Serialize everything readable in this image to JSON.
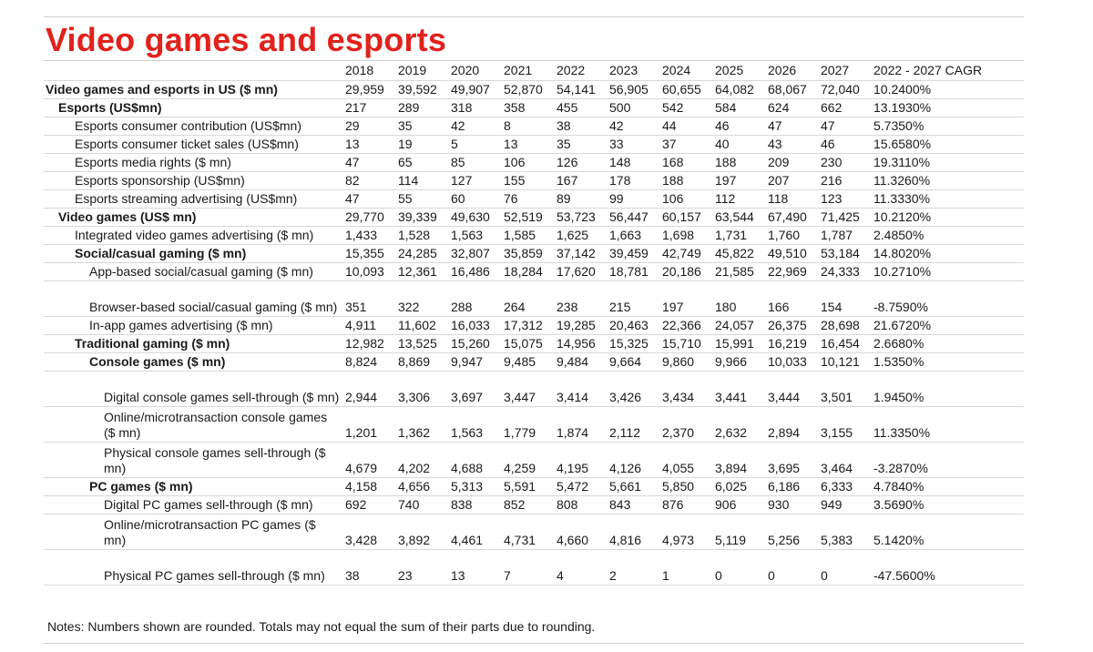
{
  "title": "Video games and esports",
  "header": [
    "",
    "2018",
    "2019",
    "2020",
    "2021",
    "2022",
    "2023",
    "2024",
    "2025",
    "2026",
    "2027",
    "2022 - 2027 CAGR"
  ],
  "rows": [
    {
      "label": "Video games and esports in US ($ mn)",
      "values": [
        "29,959",
        "39,592",
        "49,907",
        "52,870",
        "54,141",
        "56,905",
        "60,655",
        "64,082",
        "68,067",
        "72,040",
        "10.2400%"
      ]
    },
    {
      "label": "Esports (US$mn)",
      "values": [
        "217",
        "289",
        "318",
        "358",
        "455",
        "500",
        "542",
        "584",
        "624",
        "662",
        "13.1930%"
      ]
    },
    {
      "label": "Esports consumer contribution (US$mn)",
      "values": [
        "29",
        "35",
        "42",
        "8",
        "38",
        "42",
        "44",
        "46",
        "47",
        "47",
        "5.7350%"
      ]
    },
    {
      "label": "Esports consumer ticket sales (US$mn)",
      "values": [
        "13",
        "19",
        "5",
        "13",
        "35",
        "33",
        "37",
        "40",
        "43",
        "46",
        "15.6580%"
      ]
    },
    {
      "label": "Esports media rights ($ mn)",
      "values": [
        "47",
        "65",
        "85",
        "106",
        "126",
        "148",
        "168",
        "188",
        "209",
        "230",
        "19.3110%"
      ]
    },
    {
      "label": "Esports sponsorship (US$mn)",
      "values": [
        "82",
        "114",
        "127",
        "155",
        "167",
        "178",
        "188",
        "197",
        "207",
        "216",
        "11.3260%"
      ]
    },
    {
      "label": "Esports streaming advertising (US$mn)",
      "values": [
        "47",
        "55",
        "60",
        "76",
        "89",
        "99",
        "106",
        "112",
        "118",
        "123",
        "11.3330%"
      ]
    },
    {
      "label": "Video games (US$ mn)",
      "values": [
        "29,770",
        "39,339",
        "49,630",
        "52,519",
        "53,723",
        "56,447",
        "60,157",
        "63,544",
        "67,490",
        "71,425",
        "10.2120%"
      ]
    },
    {
      "label": "Integrated video games advertising ($ mn)",
      "values": [
        "1,433",
        "1,528",
        "1,563",
        "1,585",
        "1,625",
        "1,663",
        "1,698",
        "1,731",
        "1,760",
        "1,787",
        "2.4850%"
      ]
    },
    {
      "label": "Social/casual gaming ($ mn)",
      "values": [
        "15,355",
        "24,285",
        "32,807",
        "35,859",
        "37,142",
        "39,459",
        "42,749",
        "45,822",
        "49,510",
        "53,184",
        "14.8020%"
      ]
    },
    {
      "label": "App-based social/casual gaming ($ mn)",
      "values": [
        "10,093",
        "12,361",
        "16,486",
        "18,284",
        "17,620",
        "18,781",
        "20,186",
        "21,585",
        "22,969",
        "24,333",
        "10.2710%"
      ]
    },
    {
      "label": "Browser-based social/casual gaming ($ mn)",
      "values": [
        "351",
        "322",
        "288",
        "264",
        "238",
        "215",
        "197",
        "180",
        "166",
        "154",
        "-8.7590%"
      ]
    },
    {
      "label": "In-app games advertising ($ mn)",
      "values": [
        "4,911",
        "11,602",
        "16,033",
        "17,312",
        "19,285",
        "20,463",
        "22,366",
        "24,057",
        "26,375",
        "28,698",
        "21.6720%"
      ]
    },
    {
      "label": "Traditional gaming ($ mn)",
      "values": [
        "12,982",
        "13,525",
        "15,260",
        "15,075",
        "14,956",
        "15,325",
        "15,710",
        "15,991",
        "16,219",
        "16,454",
        "2.6680%"
      ]
    },
    {
      "label": "Console games ($ mn)",
      "values": [
        "8,824",
        "8,869",
        "9,947",
        "9,485",
        "9,484",
        "9,664",
        "9,860",
        "9,966",
        "10,033",
        "10,121",
        "1.5350%"
      ]
    },
    {
      "label": "Digital console games sell-through ($ mn)",
      "values": [
        "2,944",
        "3,306",
        "3,697",
        "3,447",
        "3,414",
        "3,426",
        "3,434",
        "3,441",
        "3,444",
        "3,501",
        "1.9450%"
      ]
    },
    {
      "label": "Online/microtransaction console games ($ mn)",
      "values": [
        "1,201",
        "1,362",
        "1,563",
        "1,779",
        "1,874",
        "2,112",
        "2,370",
        "2,632",
        "2,894",
        "3,155",
        "11.3350%"
      ]
    },
    {
      "label": "Physical console games sell-through ($ mn)",
      "values": [
        "4,679",
        "4,202",
        "4,688",
        "4,259",
        "4,195",
        "4,126",
        "4,055",
        "3,894",
        "3,695",
        "3,464",
        "-3.2870%"
      ]
    },
    {
      "label": "PC games ($ mn)",
      "values": [
        "4,158",
        "4,656",
        "5,313",
        "5,591",
        "5,472",
        "5,661",
        "5,850",
        "6,025",
        "6,186",
        "6,333",
        "4.7840%"
      ]
    },
    {
      "label": "Digital PC games sell-through ($ mn)",
      "values": [
        "692",
        "740",
        "838",
        "852",
        "808",
        "843",
        "876",
        "906",
        "930",
        "949",
        "3.5690%"
      ]
    },
    {
      "label": "Online/microtransaction PC games ($ mn)",
      "values": [
        "3,428",
        "3,892",
        "4,461",
        "4,731",
        "4,660",
        "4,816",
        "4,973",
        "5,119",
        "5,256",
        "5,383",
        "5.1420%"
      ]
    },
    {
      "label": "Physical PC games sell-through ($ mn)",
      "values": [
        "38",
        "23",
        "13",
        "7",
        "4",
        "2",
        "1",
        "0",
        "0",
        "0",
        "-47.5600%"
      ]
    }
  ],
  "notes": "Notes: Numbers shown are rounded. Totals may not equal the sum of their parts due to rounding."
}
